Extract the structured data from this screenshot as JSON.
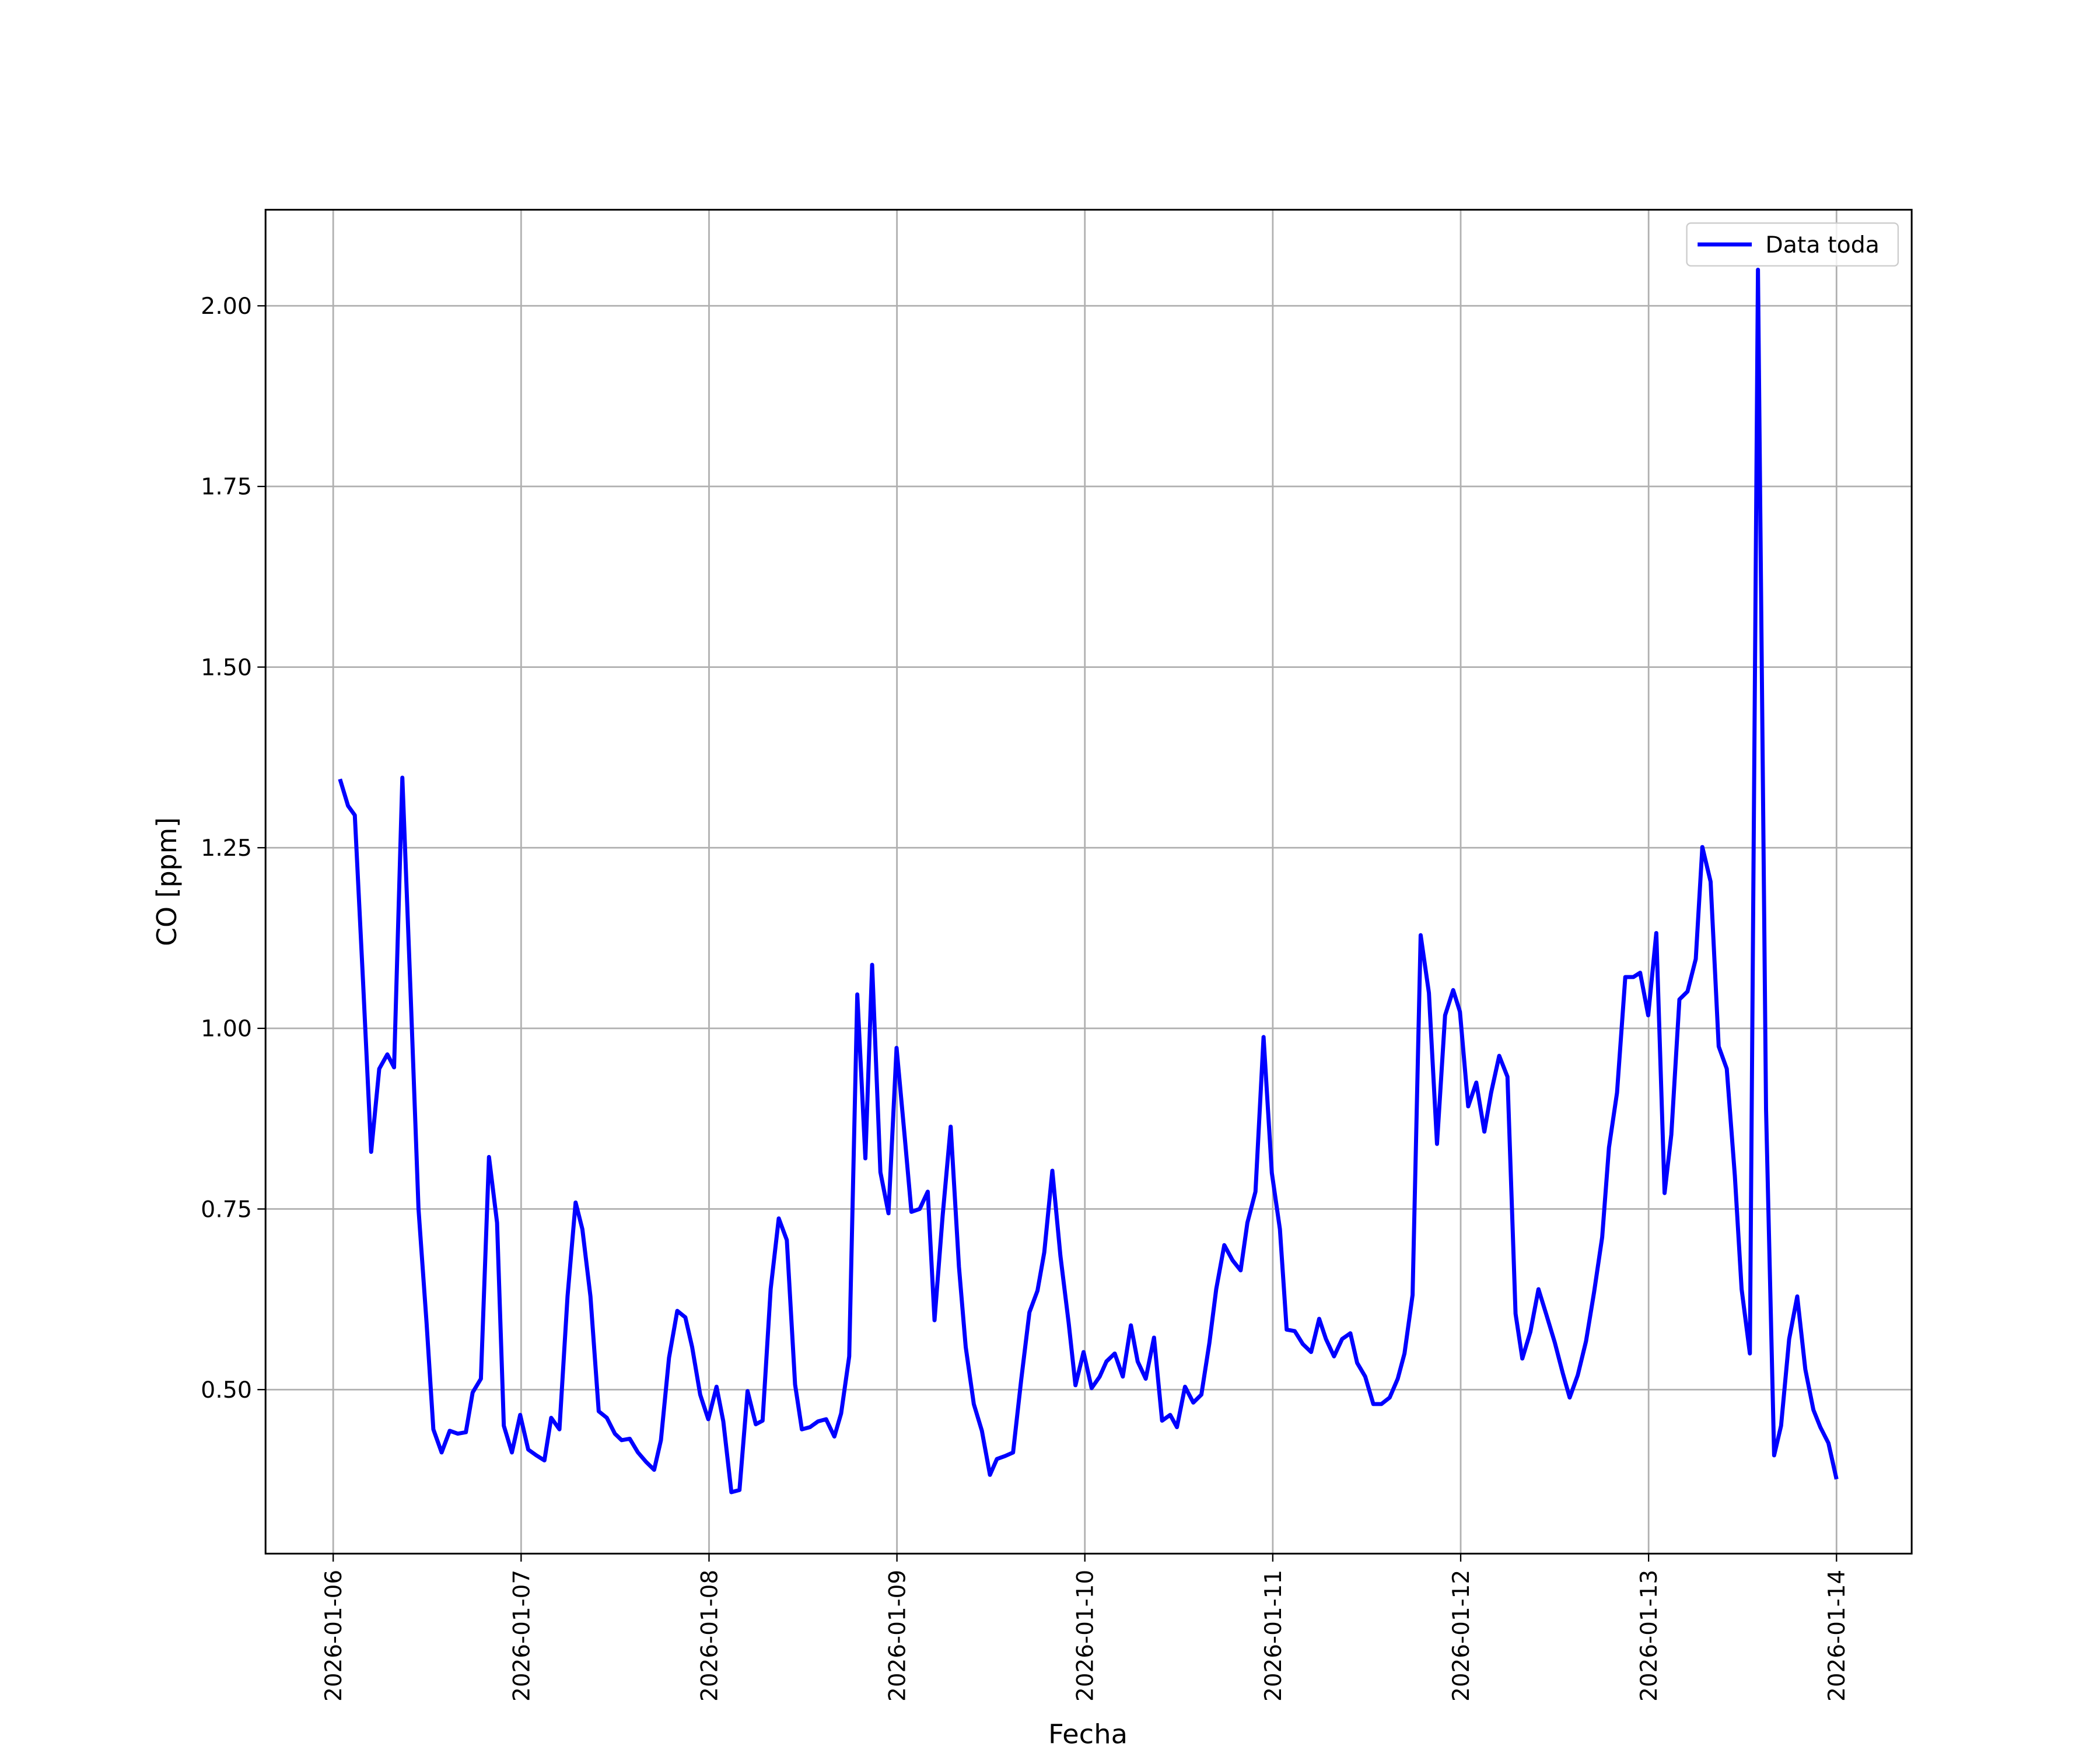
{
  "chart_data": {
    "type": "line",
    "xlabel": "Fecha",
    "ylabel": "CO [ppm]",
    "xlim": [
      20458.64,
      20467.4
    ],
    "ylim": [
      0.273,
      2.133
    ],
    "xticks": [
      {
        "value": 20459,
        "label": "2026-01-06"
      },
      {
        "value": 20460,
        "label": "2026-01-07"
      },
      {
        "value": 20461,
        "label": "2026-01-08"
      },
      {
        "value": 20462,
        "label": "2026-01-09"
      },
      {
        "value": 20463,
        "label": "2026-01-10"
      },
      {
        "value": 20464,
        "label": "2026-01-11"
      },
      {
        "value": 20465,
        "label": "2026-01-12"
      },
      {
        "value": 20466,
        "label": "2026-01-13"
      },
      {
        "value": 20467,
        "label": "2026-01-14"
      }
    ],
    "yticks": [
      {
        "value": 0.5,
        "label": "0.50"
      },
      0.75,
      {
        "value": 1.0,
        "label": "1.00"
      },
      1.25,
      {
        "value": 1.5,
        "label": "1.50"
      },
      1.75,
      {
        "value": 2.0,
        "label": "2.00"
      }
    ],
    "grid": true,
    "legend": "upper right",
    "x": [
      20459.036,
      20459.079,
      20459.115,
      20459.159,
      20459.202,
      20459.245,
      20459.288,
      20459.324,
      20459.368,
      20459.411,
      20459.454,
      20459.497,
      20459.533,
      20459.577,
      20459.62,
      20459.663,
      20459.706,
      20459.742,
      20459.786,
      20459.829,
      20459.872,
      20459.908,
      20459.951,
      20459.995,
      20460.038,
      20460.081,
      20460.124,
      20460.16,
      20460.204,
      20460.247,
      20460.29,
      20460.326,
      20460.369,
      20460.413,
      20460.456,
      20460.499,
      20460.535,
      20460.578,
      20460.622,
      20460.665,
      20460.708,
      20460.744,
      20460.787,
      20460.831,
      20460.874,
      20460.91,
      20460.953,
      20460.996,
      20461.04,
      20461.076,
      20461.119,
      20461.162,
      20461.205,
      20461.249,
      20461.285,
      20461.328,
      20461.371,
      20461.414,
      20461.458,
      20461.494,
      20461.537,
      20461.58,
      20461.623,
      20461.667,
      20461.703,
      20461.746,
      20461.789,
      20461.832,
      20461.868,
      20461.912,
      20461.955,
      20461.998,
      20462.041,
      20462.077,
      20462.121,
      20462.164,
      20462.2,
      20462.243,
      20462.286,
      20462.33,
      20462.366,
      20462.409,
      20462.452,
      20462.495,
      20462.532,
      20462.575,
      20462.618,
      20462.661,
      20462.705,
      20462.748,
      20462.784,
      20462.827,
      20462.87,
      20462.914,
      20462.95,
      20462.993,
      20463.036,
      20463.079,
      20463.115,
      20463.159,
      20463.202,
      20463.245,
      20463.281,
      20463.324,
      20463.368,
      20463.411,
      20463.454,
      20463.49,
      20463.533,
      20463.577,
      20463.62,
      20463.663,
      20463.699,
      20463.742,
      20463.786,
      20463.829,
      20463.865,
      20463.908,
      20463.951,
      20463.995,
      20464.038,
      20464.074,
      20464.117,
      20464.16,
      20464.204,
      20464.247,
      20464.283,
      20464.326,
      20464.369,
      20464.413,
      20464.449,
      20464.492,
      20464.535,
      20464.578,
      20464.622,
      20464.665,
      20464.701,
      20464.744,
      20464.787,
      20464.831,
      20464.874,
      20464.917,
      20464.96,
      20464.996,
      20465.04,
      20465.083,
      20465.126,
      20465.162,
      20465.205,
      20465.249,
      20465.292,
      20465.328,
      20465.371,
      20465.414,
      20465.458,
      20465.501,
      20465.544,
      20465.58,
      20465.623,
      20465.667,
      20465.71,
      20465.753,
      20465.789,
      20465.832,
      20465.876,
      20465.919,
      20465.955,
      20465.998,
      20466.041,
      20466.085,
      20466.121,
      20466.164,
      20466.207,
      20466.251,
      20466.286,
      20466.33,
      20466.373,
      20466.416,
      20466.459,
      20466.495,
      20466.539,
      20466.582,
      20466.625,
      20466.668,
      20466.705,
      20466.748,
      20466.791,
      20466.834,
      20466.877,
      20466.914,
      20466.957,
      20467.0
    ],
    "series": [
      {
        "name": "Data toda",
        "color": "#0000ff",
        "values": [
          1.345,
          1.308,
          1.295,
          1.064,
          0.829,
          0.944,
          0.964,
          0.946,
          1.347,
          1.055,
          0.75,
          0.592,
          0.445,
          0.413,
          0.443,
          0.439,
          0.441,
          0.496,
          0.515,
          0.822,
          0.731,
          0.45,
          0.413,
          0.465,
          0.417,
          0.409,
          0.402,
          0.461,
          0.445,
          0.629,
          0.759,
          0.722,
          0.629,
          0.47,
          0.461,
          0.439,
          0.43,
          0.432,
          0.413,
          0.4,
          0.389,
          0.43,
          0.544,
          0.609,
          0.6,
          0.559,
          0.493,
          0.459,
          0.504,
          0.456,
          0.358,
          0.361,
          0.498,
          0.452,
          0.457,
          0.639,
          0.737,
          0.707,
          0.507,
          0.445,
          0.448,
          0.456,
          0.459,
          0.435,
          0.467,
          0.546,
          1.047,
          0.82,
          1.088,
          0.801,
          0.744,
          0.973,
          0.851,
          0.746,
          0.75,
          0.774,
          0.596,
          0.74,
          0.864,
          0.67,
          0.559,
          0.48,
          0.443,
          0.382,
          0.404,
          0.408,
          0.413,
          0.513,
          0.607,
          0.637,
          0.69,
          0.803,
          0.685,
          0.592,
          0.506,
          0.552,
          0.502,
          0.518,
          0.539,
          0.55,
          0.518,
          0.589,
          0.539,
          0.515,
          0.572,
          0.457,
          0.465,
          0.448,
          0.504,
          0.482,
          0.493,
          0.565,
          0.639,
          0.7,
          0.679,
          0.665,
          0.731,
          0.774,
          0.988,
          0.8,
          0.722,
          0.583,
          0.581,
          0.563,
          0.552,
          0.598,
          0.57,
          0.546,
          0.57,
          0.578,
          0.537,
          0.518,
          0.48,
          0.48,
          0.489,
          0.515,
          0.55,
          0.631,
          1.129,
          1.049,
          0.84,
          1.018,
          1.053,
          1.023,
          0.892,
          0.925,
          0.857,
          0.911,
          0.962,
          0.933,
          0.605,
          0.543,
          0.58,
          0.639,
          0.602,
          0.565,
          0.522,
          0.489,
          0.52,
          0.567,
          0.635,
          0.711,
          0.835,
          0.911,
          1.071,
          1.071,
          1.077,
          1.018,
          1.132,
          0.772,
          0.853,
          1.04,
          1.051,
          1.096,
          1.251,
          1.203,
          0.975,
          0.944,
          0.796,
          0.639,
          0.55,
          2.05,
          0.888,
          0.409,
          0.45,
          0.57,
          0.629,
          0.528,
          0.472,
          0.448,
          0.426,
          0.376
        ]
      }
    ]
  }
}
